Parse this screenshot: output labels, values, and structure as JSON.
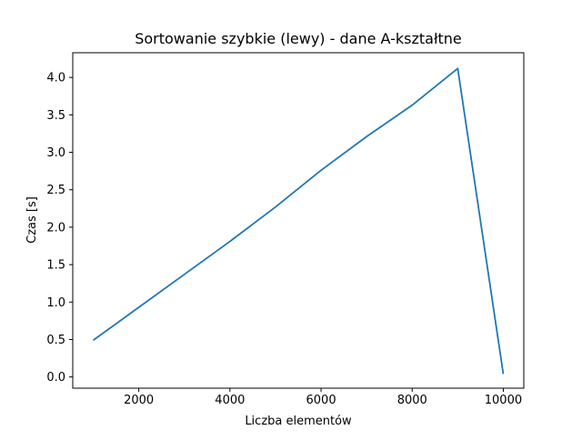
{
  "chart_data": {
    "type": "line",
    "title": "Sortowanie szybkie (lewy) - dane A-kształtne",
    "xlabel": "Liczba elementów",
    "ylabel": "Czas [s]",
    "xlim": [
      550,
      10450
    ],
    "ylim": [
      -0.15,
      4.33
    ],
    "xticks": [
      2000,
      4000,
      6000,
      8000,
      10000
    ],
    "yticks": [
      0.0,
      0.5,
      1.0,
      1.5,
      2.0,
      2.5,
      3.0,
      3.5,
      4.0
    ],
    "xtick_labels": [
      "2000",
      "4000",
      "6000",
      "8000",
      "10000"
    ],
    "ytick_labels": [
      "0.0",
      "0.5",
      "1.0",
      "1.5",
      "2.0",
      "2.5",
      "3.0",
      "3.5",
      "4.0"
    ],
    "grid": false,
    "series": [
      {
        "color": "#1f77b4",
        "x": [
          1000,
          2000,
          3000,
          4000,
          5000,
          6000,
          7000,
          8000,
          9000,
          10000
        ],
        "y": [
          0.49,
          0.93,
          1.37,
          1.81,
          2.27,
          2.76,
          3.21,
          3.63,
          4.12,
          0.04
        ]
      }
    ]
  }
}
